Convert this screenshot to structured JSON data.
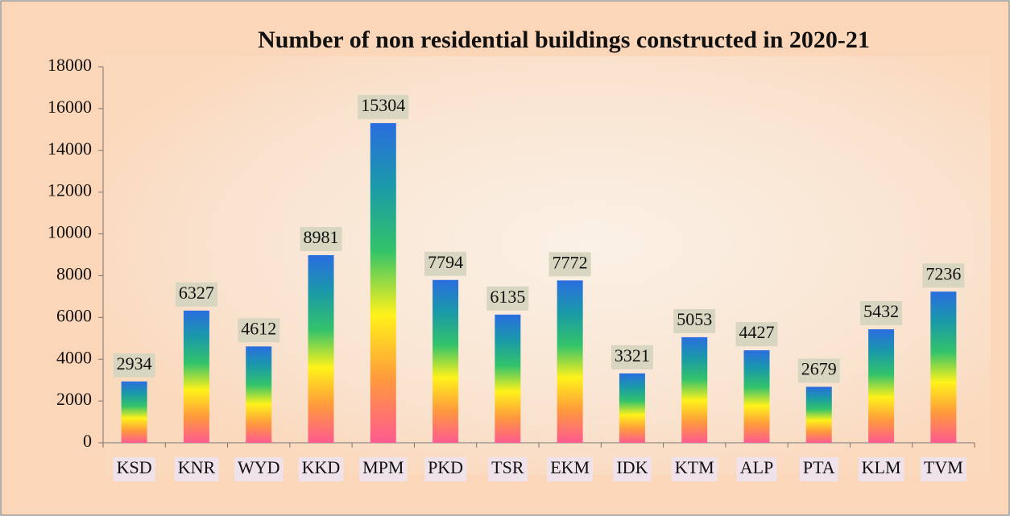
{
  "chart_data": {
    "type": "bar",
    "title": "Number of non residential buildings constructed in 2020-21",
    "categories": [
      "KSD",
      "KNR",
      "WYD",
      "KKD",
      "MPM",
      "PKD",
      "TSR",
      "EKM",
      "IDK",
      "KTM",
      "ALP",
      "PTA",
      "KLM",
      "TVM"
    ],
    "values": [
      2934,
      6327,
      4612,
      8981,
      15304,
      7794,
      6135,
      7772,
      3321,
      5053,
      4427,
      2679,
      5432,
      7236
    ],
    "gradient": [
      "#ff5a90",
      "#ff9a3c",
      "#fff21a",
      "#33c36a",
      "#1a9aa8",
      "#2a6de0"
    ],
    "ylim": [
      0,
      18000
    ],
    "yticks": [
      0,
      2000,
      4000,
      6000,
      8000,
      10000,
      12000,
      14000,
      16000,
      18000
    ],
    "grid": false
  }
}
